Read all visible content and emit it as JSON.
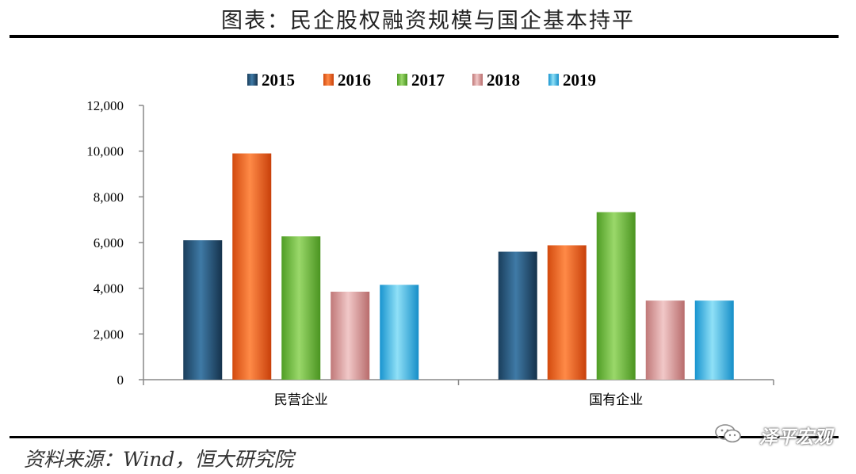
{
  "header": {
    "title": "图表：民企股权融资规模与国企基本持平"
  },
  "footer": {
    "source": "资料来源：Wind，恒大研究院",
    "watermark": "泽平宏观"
  },
  "chart_data": {
    "type": "bar",
    "categories": [
      "民营企业",
      "国有企业"
    ],
    "series": [
      {
        "name": "2015",
        "values": [
          6100,
          5600
        ],
        "color": "#2a5f86"
      },
      {
        "name": "2016",
        "values": [
          9900,
          5880
        ],
        "color": "#ef5f1c"
      },
      {
        "name": "2017",
        "values": [
          6270,
          7330
        ],
        "color": "#6cbf3f"
      },
      {
        "name": "2018",
        "values": [
          3850,
          3460
        ],
        "color": "#dc9a9a"
      },
      {
        "name": "2019",
        "values": [
          4150,
          3460
        ],
        "color": "#2eb1e3"
      }
    ],
    "yticks": [
      "0",
      "2,000",
      "4,000",
      "6,000",
      "8,000",
      "10,000",
      "12,000"
    ],
    "ylim": [
      0,
      12000
    ],
    "legend_position": "top-center",
    "grid": false
  }
}
